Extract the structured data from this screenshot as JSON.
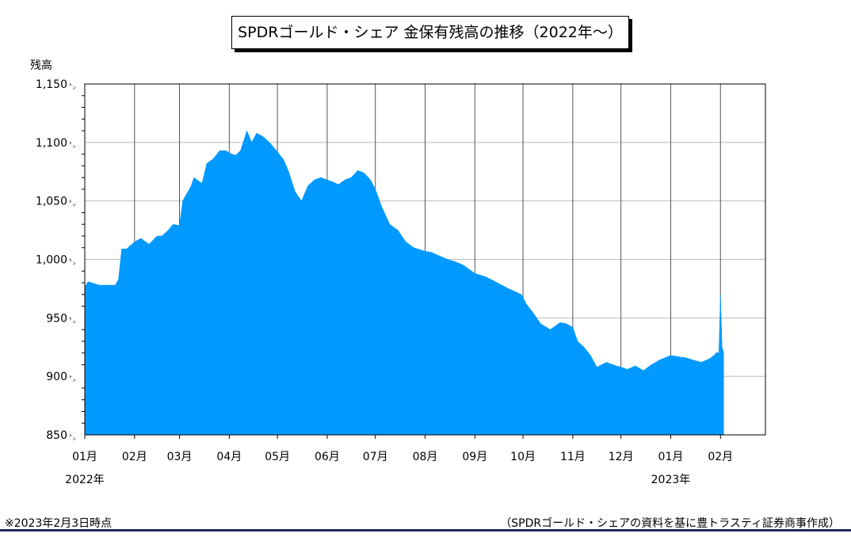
{
  "chart_data": {
    "type": "area",
    "title": "SPDRゴールド・シェア 金保有残高の推移（2022年～）",
    "ylabel": "残高",
    "xlabel": "",
    "ylim": [
      850,
      1150
    ],
    "y_unit": "㌧",
    "y_ticks": [
      "850",
      "900",
      "950",
      "1,000",
      "1,050",
      "1,100",
      "1,150"
    ],
    "x_ticks": [
      "01月",
      "02月",
      "03月",
      "04月",
      "05月",
      "06月",
      "07月",
      "08月",
      "09月",
      "10月",
      "11月",
      "12月",
      "01月",
      "02月"
    ],
    "year_labels": [
      {
        "text": "2022年",
        "tick_index": 0
      },
      {
        "text": "2023年",
        "tick_index": 12
      }
    ],
    "grid": true,
    "color": "#0099ff",
    "series": [
      {
        "x": [
          "2022-01-01",
          "2022-01-03",
          "2022-01-10",
          "2022-01-20",
          "2022-01-22",
          "2022-01-24",
          "2022-01-27",
          "2022-02-01",
          "2022-02-05",
          "2022-02-10",
          "2022-02-15",
          "2022-02-18",
          "2022-02-22",
          "2022-02-25",
          "2022-03-01",
          "2022-03-03",
          "2022-03-05",
          "2022-03-08",
          "2022-03-10",
          "2022-03-15",
          "2022-03-18",
          "2022-03-22",
          "2022-03-26",
          "2022-03-30",
          "2022-04-01",
          "2022-04-05",
          "2022-04-08",
          "2022-04-12",
          "2022-04-15",
          "2022-04-18",
          "2022-04-22",
          "2022-04-26",
          "2022-05-01",
          "2022-05-05",
          "2022-05-08",
          "2022-05-12",
          "2022-05-16",
          "2022-05-20",
          "2022-05-24",
          "2022-05-28",
          "2022-06-01",
          "2022-06-05",
          "2022-06-08",
          "2022-06-12",
          "2022-06-16",
          "2022-06-20",
          "2022-06-24",
          "2022-06-28",
          "2022-07-01",
          "2022-07-05",
          "2022-07-10",
          "2022-07-15",
          "2022-07-20",
          "2022-07-25",
          "2022-08-01",
          "2022-08-05",
          "2022-08-10",
          "2022-08-15",
          "2022-08-20",
          "2022-08-25",
          "2022-09-01",
          "2022-09-08",
          "2022-09-15",
          "2022-09-22",
          "2022-09-30",
          "2022-10-03",
          "2022-10-07",
          "2022-10-12",
          "2022-10-18",
          "2022-10-24",
          "2022-10-28",
          "2022-11-01",
          "2022-11-04",
          "2022-11-08",
          "2022-11-12",
          "2022-11-16",
          "2022-11-22",
          "2022-11-28",
          "2022-12-01",
          "2022-12-05",
          "2022-12-10",
          "2022-12-15",
          "2022-12-20",
          "2022-12-25",
          "2023-01-01",
          "2023-01-05",
          "2023-01-10",
          "2023-01-15",
          "2023-01-20",
          "2023-01-25",
          "2023-01-28",
          "2023-01-30",
          "2023-01-31",
          "2023-02-01",
          "2023-02-02",
          "2023-02-03"
        ],
        "values": [
          977,
          981,
          978,
          978,
          983,
          1009,
          1009,
          1015,
          1018,
          1013,
          1020,
          1020,
          1025,
          1030,
          1029,
          1050,
          1055,
          1062,
          1070,
          1065,
          1082,
          1086,
          1093,
          1093,
          1091,
          1089,
          1093,
          1110,
          1100,
          1108,
          1105,
          1100,
          1092,
          1085,
          1075,
          1058,
          1050,
          1063,
          1068,
          1070,
          1068,
          1066,
          1064,
          1068,
          1070,
          1076,
          1074,
          1068,
          1060,
          1045,
          1030,
          1025,
          1015,
          1010,
          1007,
          1006,
          1003,
          1000,
          998,
          995,
          988,
          985,
          980,
          975,
          970,
          962,
          955,
          945,
          940,
          946,
          945,
          942,
          930,
          925,
          918,
          908,
          912,
          909,
          908,
          906,
          909,
          905,
          910,
          914,
          918,
          917,
          916,
          914,
          912,
          915,
          918,
          921,
          919,
          970,
          925,
          920
        ]
      }
    ]
  },
  "footnote": "※2023年2月3日時点",
  "source": "（SPDRゴールド・シェアの資料を基に豊トラスティ証券商事作成）"
}
